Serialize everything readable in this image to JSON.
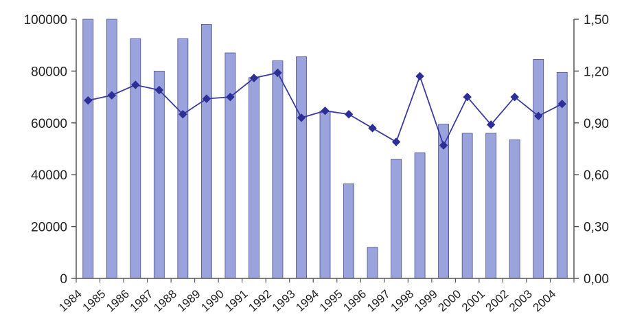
{
  "chart_data": {
    "type": "bar",
    "categories": [
      "1984",
      "1985",
      "1986",
      "1987",
      "1988",
      "1989",
      "1990",
      "1991",
      "1992",
      "1993",
      "1994",
      "1995",
      "1996",
      "1997",
      "1998",
      "1999",
      "2000",
      "2001",
      "2002",
      "2003",
      "2004"
    ],
    "series": [
      {
        "type": "bar",
        "axis": "left",
        "color": "#9aa3dc",
        "values": [
          100000,
          100000,
          92500,
          80000,
          92500,
          98000,
          87000,
          77500,
          84000,
          85500,
          64500,
          36500,
          12000,
          46000,
          48500,
          59500,
          56000,
          56000,
          53500,
          84500,
          79500
        ]
      },
      {
        "type": "line",
        "axis": "right",
        "color": "#3a3ba0",
        "values": [
          1.03,
          1.06,
          1.12,
          1.09,
          0.95,
          1.04,
          1.05,
          1.16,
          1.19,
          0.93,
          0.97,
          0.95,
          0.87,
          0.79,
          1.17,
          0.77,
          1.05,
          0.89,
          1.05,
          0.94,
          1.01
        ]
      }
    ],
    "yaxis_left": {
      "range": [
        0,
        100000
      ],
      "ticks": [
        "0",
        "20000",
        "40000",
        "60000",
        "80000",
        "100000"
      ]
    },
    "yaxis_right": {
      "range": [
        0,
        1.5
      ],
      "ticks": [
        "0,00",
        "0,30",
        "0,60",
        "0,90",
        "1,20",
        "1,50"
      ]
    },
    "grid": false,
    "legend": "none"
  }
}
